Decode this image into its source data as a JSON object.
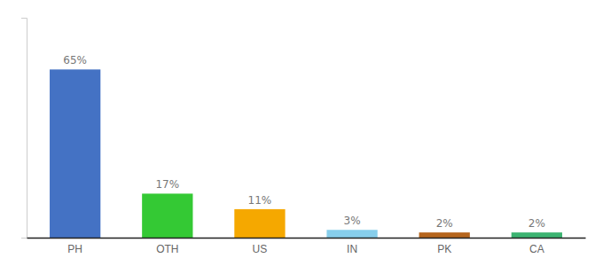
{
  "chart_data": {
    "type": "bar",
    "categories": [
      "PH",
      "OTH",
      "US",
      "IN",
      "PK",
      "CA"
    ],
    "values": [
      65,
      17,
      11,
      3,
      2,
      2
    ],
    "value_labels": [
      "65%",
      "17%",
      "11%",
      "3%",
      "2%",
      "2%"
    ],
    "colors": [
      "#4472c4",
      "#34c934",
      "#f5a800",
      "#87ceeb",
      "#b5651d",
      "#3cb371"
    ],
    "data_labels": true,
    "ylim": [
      0,
      85
    ],
    "yticks": [],
    "tick_labels": "x"
  }
}
